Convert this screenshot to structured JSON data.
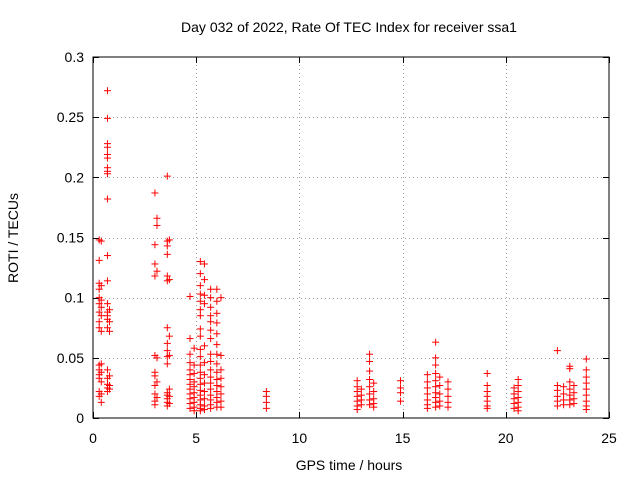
{
  "chart_data": {
    "type": "scatter",
    "title": "Day 032 of 2022, Rate Of TEC Index for receiver ssa1",
    "xlabel": "GPS time / hours",
    "ylabel": "ROTI / TECUs",
    "xlim": [
      0,
      25
    ],
    "ylim": [
      0,
      0.3
    ],
    "xticks": [
      0,
      5,
      10,
      15,
      20,
      25
    ],
    "yticks": [
      0,
      0.05,
      0.1,
      0.15,
      0.2,
      0.25,
      0.3
    ],
    "xtick_labels": [
      "0",
      "5",
      "10",
      "15",
      "20",
      "25"
    ],
    "ytick_labels": [
      "0",
      "0.05",
      "0.1",
      "0.15",
      "0.2",
      "0.25",
      "0.3"
    ],
    "grid": true,
    "legend": "none",
    "marker": "+",
    "series": [
      {
        "name": "ROTI",
        "color": "#ff0000",
        "points": [
          [
            0.3,
            0.148
          ],
          [
            0.3,
            0.131
          ],
          [
            0.3,
            0.112
          ],
          [
            0.3,
            0.107
          ],
          [
            0.3,
            0.1
          ],
          [
            0.3,
            0.095
          ],
          [
            0.3,
            0.088
          ],
          [
            0.3,
            0.08
          ],
          [
            0.3,
            0.075
          ],
          [
            0.3,
            0.044
          ],
          [
            0.3,
            0.04
          ],
          [
            0.3,
            0.036
          ],
          [
            0.3,
            0.033
          ],
          [
            0.3,
            0.022
          ],
          [
            0.3,
            0.018
          ],
          [
            0.4,
            0.147
          ],
          [
            0.4,
            0.11
          ],
          [
            0.4,
            0.098
          ],
          [
            0.4,
            0.092
          ],
          [
            0.4,
            0.085
          ],
          [
            0.4,
            0.072
          ],
          [
            0.4,
            0.045
          ],
          [
            0.4,
            0.038
          ],
          [
            0.4,
            0.03
          ],
          [
            0.4,
            0.02
          ],
          [
            0.4,
            0.013
          ],
          [
            0.7,
            0.272
          ],
          [
            0.7,
            0.249
          ],
          [
            0.7,
            0.228
          ],
          [
            0.7,
            0.225
          ],
          [
            0.7,
            0.219
          ],
          [
            0.7,
            0.216
          ],
          [
            0.7,
            0.208
          ],
          [
            0.7,
            0.205
          ],
          [
            0.7,
            0.203
          ],
          [
            0.7,
            0.182
          ],
          [
            0.7,
            0.135
          ],
          [
            0.7,
            0.114
          ],
          [
            0.7,
            0.095
          ],
          [
            0.7,
            0.088
          ],
          [
            0.7,
            0.085
          ],
          [
            0.7,
            0.082
          ],
          [
            0.7,
            0.075
          ],
          [
            0.7,
            0.04
          ],
          [
            0.7,
            0.033
          ],
          [
            0.7,
            0.028
          ],
          [
            0.7,
            0.025
          ],
          [
            0.7,
            0.022
          ],
          [
            0.8,
            0.09
          ],
          [
            0.8,
            0.08
          ],
          [
            0.8,
            0.072
          ],
          [
            0.8,
            0.035
          ],
          [
            0.8,
            0.027
          ],
          [
            0.8,
            0.024
          ],
          [
            3.0,
            0.187
          ],
          [
            3.0,
            0.144
          ],
          [
            3.0,
            0.128
          ],
          [
            3.0,
            0.118
          ],
          [
            3.0,
            0.052
          ],
          [
            3.0,
            0.038
          ],
          [
            3.0,
            0.035
          ],
          [
            3.0,
            0.027
          ],
          [
            3.0,
            0.02
          ],
          [
            3.0,
            0.014
          ],
          [
            3.0,
            0.011
          ],
          [
            3.1,
            0.166
          ],
          [
            3.1,
            0.16
          ],
          [
            3.1,
            0.122
          ],
          [
            3.1,
            0.05
          ],
          [
            3.1,
            0.03
          ],
          [
            3.1,
            0.017
          ],
          [
            3.6,
            0.201
          ],
          [
            3.6,
            0.147
          ],
          [
            3.6,
            0.143
          ],
          [
            3.6,
            0.136
          ],
          [
            3.6,
            0.118
          ],
          [
            3.6,
            0.114
          ],
          [
            3.6,
            0.075
          ],
          [
            3.6,
            0.062
          ],
          [
            3.6,
            0.056
          ],
          [
            3.6,
            0.051
          ],
          [
            3.6,
            0.045
          ],
          [
            3.6,
            0.021
          ],
          [
            3.6,
            0.019
          ],
          [
            3.6,
            0.016
          ],
          [
            3.6,
            0.013
          ],
          [
            3.6,
            0.01
          ],
          [
            3.7,
            0.148
          ],
          [
            3.7,
            0.115
          ],
          [
            3.7,
            0.068
          ],
          [
            3.7,
            0.052
          ],
          [
            3.7,
            0.024
          ],
          [
            3.7,
            0.018
          ],
          [
            3.7,
            0.012
          ],
          [
            4.7,
            0.101
          ],
          [
            4.7,
            0.066
          ],
          [
            4.7,
            0.053
          ],
          [
            4.7,
            0.046
          ],
          [
            4.7,
            0.04
          ],
          [
            4.7,
            0.036
          ],
          [
            4.7,
            0.032
          ],
          [
            4.7,
            0.028
          ],
          [
            4.7,
            0.024
          ],
          [
            4.7,
            0.02
          ],
          [
            4.7,
            0.016
          ],
          [
            4.7,
            0.012
          ],
          [
            4.7,
            0.008
          ],
          [
            4.9,
            0.058
          ],
          [
            4.9,
            0.044
          ],
          [
            4.9,
            0.037
          ],
          [
            4.9,
            0.03
          ],
          [
            4.9,
            0.026
          ],
          [
            4.9,
            0.021
          ],
          [
            4.9,
            0.017
          ],
          [
            4.9,
            0.013
          ],
          [
            4.9,
            0.009
          ],
          [
            4.9,
            0.006
          ],
          [
            5.2,
            0.13
          ],
          [
            5.2,
            0.12
          ],
          [
            5.2,
            0.11
          ],
          [
            5.2,
            0.103
          ],
          [
            5.2,
            0.097
          ],
          [
            5.2,
            0.09
          ],
          [
            5.2,
            0.085
          ],
          [
            5.2,
            0.074
          ],
          [
            5.2,
            0.068
          ],
          [
            5.2,
            0.057
          ],
          [
            5.2,
            0.051
          ],
          [
            5.2,
            0.044
          ],
          [
            5.2,
            0.038
          ],
          [
            5.2,
            0.033
          ],
          [
            5.2,
            0.028
          ],
          [
            5.2,
            0.023
          ],
          [
            5.2,
            0.019
          ],
          [
            5.2,
            0.015
          ],
          [
            5.2,
            0.011
          ],
          [
            5.2,
            0.008
          ],
          [
            5.2,
            0.006
          ],
          [
            5.4,
            0.128
          ],
          [
            5.4,
            0.115
          ],
          [
            5.4,
            0.102
          ],
          [
            5.4,
            0.095
          ],
          [
            5.4,
            0.06
          ],
          [
            5.4,
            0.046
          ],
          [
            5.4,
            0.036
          ],
          [
            5.4,
            0.029
          ],
          [
            5.4,
            0.022
          ],
          [
            5.4,
            0.016
          ],
          [
            5.4,
            0.01
          ],
          [
            5.4,
            0.007
          ],
          [
            5.7,
            0.107
          ],
          [
            5.7,
            0.1
          ],
          [
            5.7,
            0.092
          ],
          [
            5.7,
            0.085
          ],
          [
            5.7,
            0.08
          ],
          [
            5.7,
            0.073
          ],
          [
            5.7,
            0.066
          ],
          [
            5.7,
            0.053
          ],
          [
            5.7,
            0.047
          ],
          [
            5.7,
            0.04
          ],
          [
            5.7,
            0.034
          ],
          [
            5.7,
            0.029
          ],
          [
            5.7,
            0.024
          ],
          [
            5.7,
            0.019
          ],
          [
            5.7,
            0.015
          ],
          [
            5.7,
            0.011
          ],
          [
            5.7,
            0.008
          ],
          [
            6.0,
            0.107
          ],
          [
            6.0,
            0.097
          ],
          [
            6.0,
            0.087
          ],
          [
            6.0,
            0.079
          ],
          [
            6.0,
            0.07
          ],
          [
            6.0,
            0.061
          ],
          [
            6.0,
            0.053
          ],
          [
            6.0,
            0.045
          ],
          [
            6.0,
            0.038
          ],
          [
            6.0,
            0.032
          ],
          [
            6.0,
            0.027
          ],
          [
            6.0,
            0.022
          ],
          [
            6.0,
            0.017
          ],
          [
            6.0,
            0.013
          ],
          [
            6.0,
            0.009
          ],
          [
            6.2,
            0.1
          ],
          [
            6.2,
            0.052
          ],
          [
            6.2,
            0.04
          ],
          [
            6.2,
            0.033
          ],
          [
            6.2,
            0.026
          ],
          [
            6.2,
            0.02
          ],
          [
            6.2,
            0.014
          ],
          [
            6.2,
            0.009
          ],
          [
            8.4,
            0.022
          ],
          [
            8.4,
            0.018
          ],
          [
            8.4,
            0.013
          ],
          [
            8.4,
            0.008
          ],
          [
            12.8,
            0.031
          ],
          [
            12.8,
            0.026
          ],
          [
            12.8,
            0.022
          ],
          [
            12.8,
            0.018
          ],
          [
            12.8,
            0.014
          ],
          [
            12.8,
            0.01
          ],
          [
            12.8,
            0.007
          ],
          [
            13.0,
            0.024
          ],
          [
            13.0,
            0.019
          ],
          [
            13.0,
            0.015
          ],
          [
            13.0,
            0.011
          ],
          [
            13.4,
            0.053
          ],
          [
            13.4,
            0.047
          ],
          [
            13.4,
            0.039
          ],
          [
            13.4,
            0.032
          ],
          [
            13.4,
            0.026
          ],
          [
            13.4,
            0.02
          ],
          [
            13.4,
            0.015
          ],
          [
            13.4,
            0.011
          ],
          [
            13.6,
            0.029
          ],
          [
            13.6,
            0.022
          ],
          [
            13.6,
            0.016
          ],
          [
            13.6,
            0.012
          ],
          [
            13.6,
            0.009
          ],
          [
            14.9,
            0.031
          ],
          [
            14.9,
            0.025
          ],
          [
            14.9,
            0.021
          ],
          [
            14.9,
            0.014
          ],
          [
            16.2,
            0.036
          ],
          [
            16.2,
            0.03
          ],
          [
            16.2,
            0.025
          ],
          [
            16.2,
            0.02
          ],
          [
            16.2,
            0.015
          ],
          [
            16.2,
            0.011
          ],
          [
            16.2,
            0.008
          ],
          [
            16.6,
            0.063
          ],
          [
            16.6,
            0.05
          ],
          [
            16.6,
            0.044
          ],
          [
            16.6,
            0.037
          ],
          [
            16.6,
            0.031
          ],
          [
            16.6,
            0.026
          ],
          [
            16.6,
            0.021
          ],
          [
            16.6,
            0.017
          ],
          [
            16.6,
            0.013
          ],
          [
            16.6,
            0.009
          ],
          [
            16.8,
            0.034
          ],
          [
            16.8,
            0.027
          ],
          [
            16.8,
            0.02
          ],
          [
            16.8,
            0.014
          ],
          [
            16.8,
            0.01
          ],
          [
            17.2,
            0.03
          ],
          [
            17.2,
            0.024
          ],
          [
            17.2,
            0.018
          ],
          [
            17.2,
            0.013
          ],
          [
            17.2,
            0.009
          ],
          [
            19.1,
            0.037
          ],
          [
            19.1,
            0.027
          ],
          [
            19.1,
            0.022
          ],
          [
            19.1,
            0.018
          ],
          [
            19.1,
            0.014
          ],
          [
            19.1,
            0.01
          ],
          [
            19.1,
            0.008
          ],
          [
            20.4,
            0.025
          ],
          [
            20.4,
            0.02
          ],
          [
            20.4,
            0.016
          ],
          [
            20.4,
            0.012
          ],
          [
            20.4,
            0.008
          ],
          [
            20.6,
            0.032
          ],
          [
            20.6,
            0.027
          ],
          [
            20.6,
            0.022
          ],
          [
            20.6,
            0.017
          ],
          [
            20.6,
            0.013
          ],
          [
            20.6,
            0.009
          ],
          [
            20.6,
            0.006
          ],
          [
            22.5,
            0.056
          ],
          [
            22.5,
            0.027
          ],
          [
            22.5,
            0.023
          ],
          [
            22.5,
            0.018
          ],
          [
            22.5,
            0.014
          ],
          [
            22.5,
            0.01
          ],
          [
            22.8,
            0.026
          ],
          [
            22.8,
            0.02
          ],
          [
            22.8,
            0.015
          ],
          [
            22.8,
            0.011
          ],
          [
            23.1,
            0.043
          ],
          [
            23.1,
            0.041
          ],
          [
            23.1,
            0.03
          ],
          [
            23.1,
            0.024
          ],
          [
            23.1,
            0.019
          ],
          [
            23.1,
            0.015
          ],
          [
            23.1,
            0.011
          ],
          [
            23.3,
            0.027
          ],
          [
            23.3,
            0.021
          ],
          [
            23.3,
            0.016
          ],
          [
            23.3,
            0.012
          ],
          [
            23.9,
            0.049
          ],
          [
            23.9,
            0.04
          ],
          [
            23.9,
            0.034
          ],
          [
            23.9,
            0.029
          ],
          [
            23.9,
            0.024
          ],
          [
            23.9,
            0.019
          ],
          [
            23.9,
            0.014
          ],
          [
            23.9,
            0.01
          ],
          [
            23.9,
            0.007
          ]
        ]
      }
    ]
  }
}
